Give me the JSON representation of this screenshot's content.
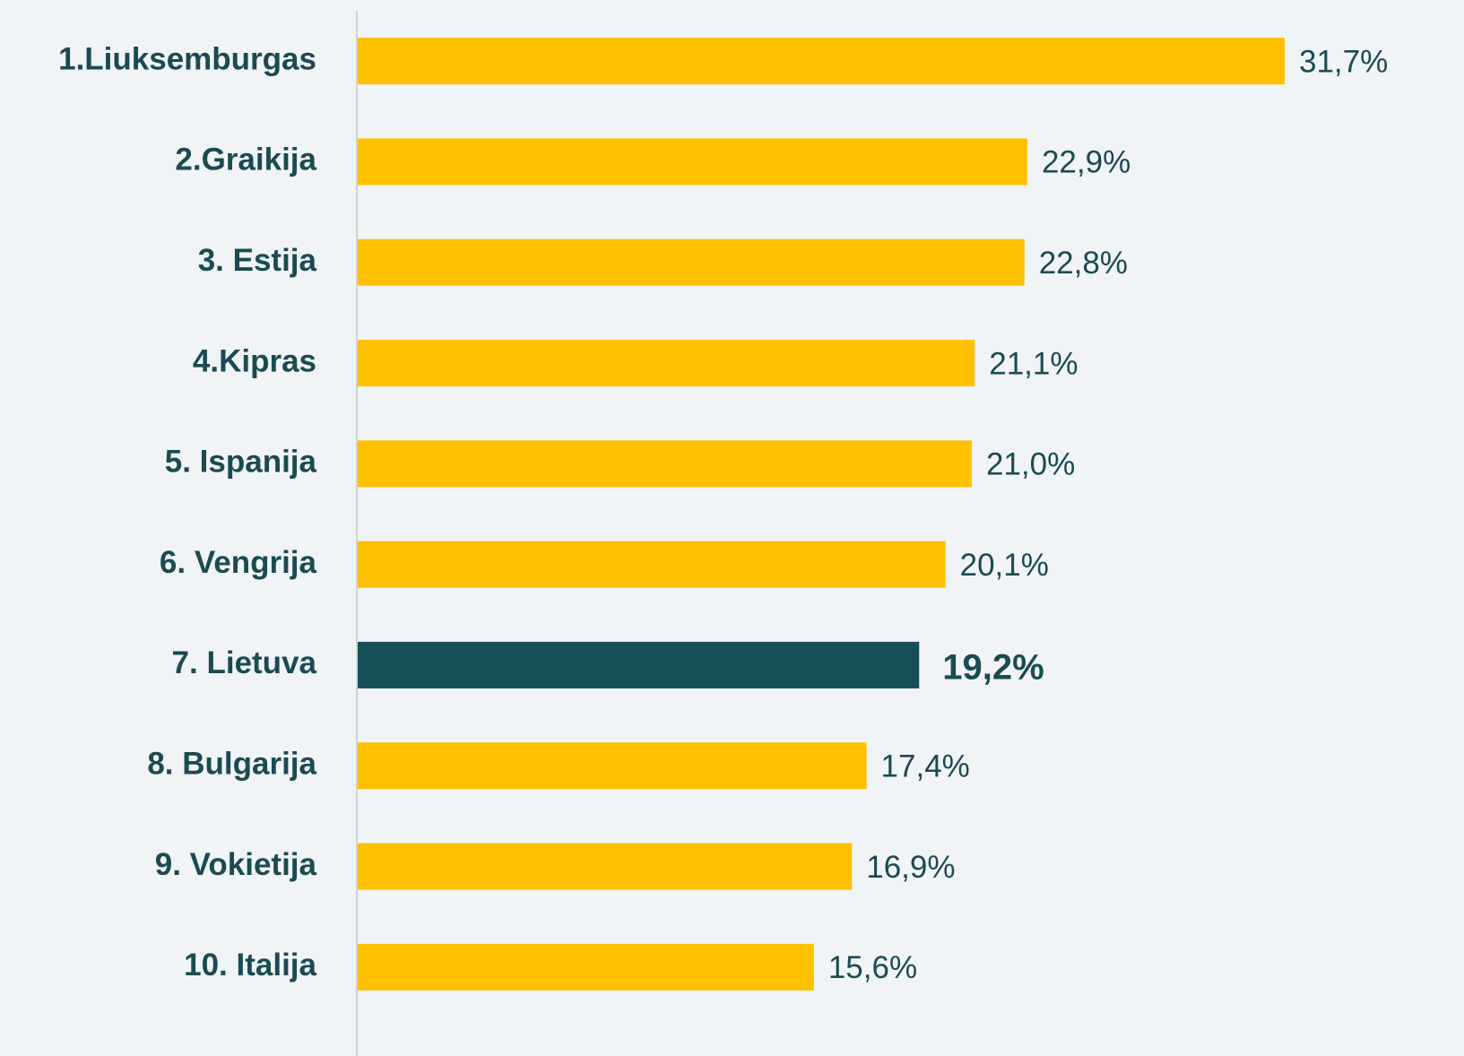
{
  "chart_data": {
    "type": "bar",
    "orientation": "horizontal",
    "categories": [
      "1.Liuksemburgas",
      "2.Graikija",
      "3. Estija",
      "4.Kipras",
      "5. Ispanija",
      "6. Vengrija",
      "7. Lietuva",
      "8. Bulgarija",
      "9. Vokietija",
      "10. Italija"
    ],
    "values": [
      31.7,
      22.9,
      22.8,
      21.1,
      21.0,
      20.1,
      19.2,
      17.4,
      16.9,
      15.6
    ],
    "value_labels": [
      "31,7%",
      "22,9%",
      "22,8%",
      "21,1%",
      "21,0%",
      "20,1%",
      "19,2%",
      "17,4%",
      "16,9%",
      "15,6%"
    ],
    "color": "#FFC000",
    "highlight": {
      "index": 6,
      "color": "#174F57"
    }
  }
}
